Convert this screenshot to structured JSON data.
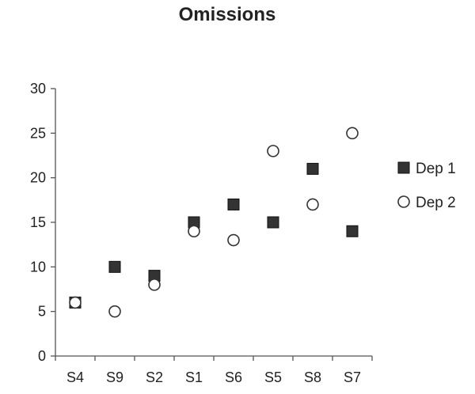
{
  "chart_data": {
    "type": "scatter",
    "title": "Omissions",
    "xlabel": "",
    "ylabel": "",
    "categories": [
      "S4",
      "S9",
      "S2",
      "S1",
      "S6",
      "S5",
      "S8",
      "S7"
    ],
    "ylim": [
      0,
      30
    ],
    "yticks": [
      "0",
      "5",
      "10",
      "15",
      "20",
      "25",
      "30"
    ],
    "grid": false,
    "legend_position": "right",
    "series": [
      {
        "name": "Dep 1",
        "marker": "square",
        "color": "#333333",
        "values": [
          6,
          10,
          9,
          15,
          17,
          15,
          21,
          14
        ]
      },
      {
        "name": "Dep 2",
        "marker": "circle",
        "color": "#333333",
        "values": [
          6,
          5,
          8,
          14,
          13,
          23,
          17,
          25
        ]
      }
    ]
  }
}
